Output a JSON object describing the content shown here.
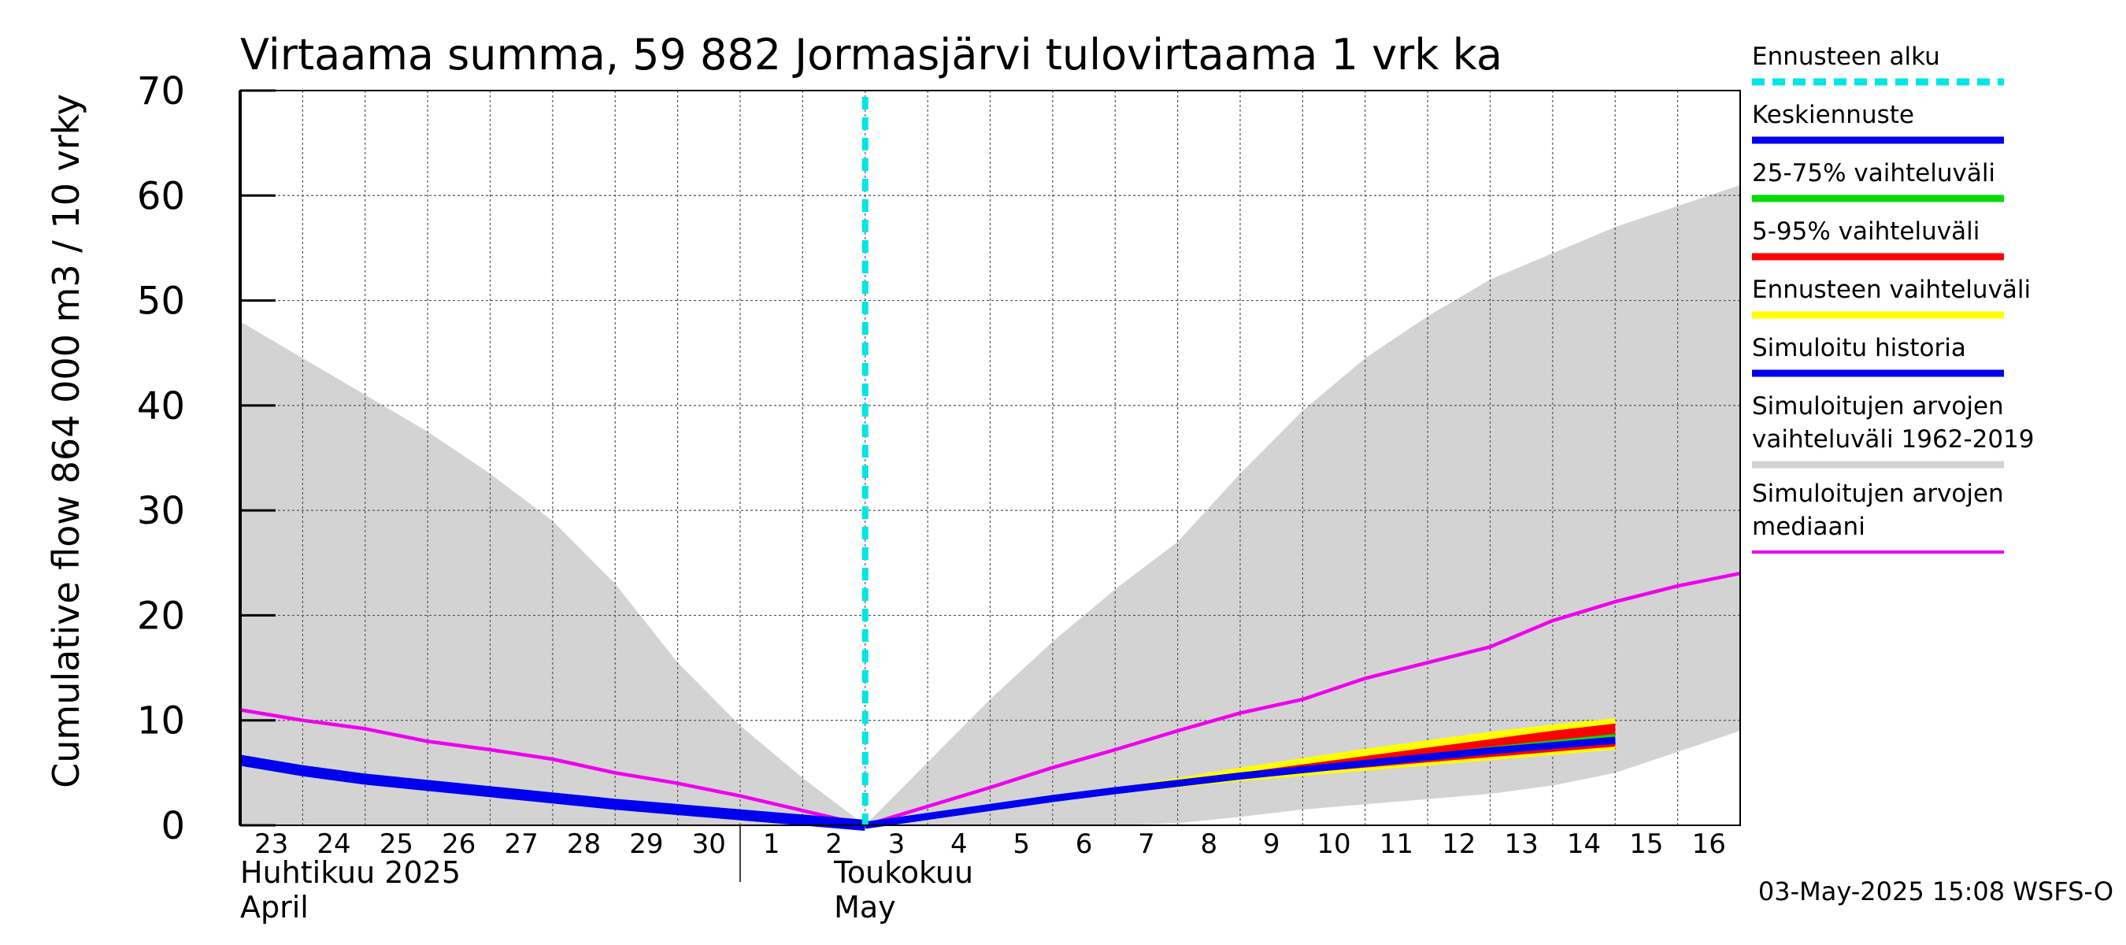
{
  "chart_data": {
    "type": "line",
    "title": "Virtaama summa, 59 882 Jormasjärvi tulovirtaama 1 vrk ka",
    "ylabel": "Cumulative flow    864 000 m3 / 10 vrky",
    "ylim": [
      0,
      70
    ],
    "yticks": [
      "0",
      "10",
      "20",
      "30",
      "40",
      "50",
      "60",
      "70"
    ],
    "grid": true,
    "xtick_labels": [
      "23",
      "24",
      "25",
      "26",
      "27",
      "28",
      "29",
      "30",
      "1",
      "2",
      "3",
      "4",
      "5",
      "6",
      "7",
      "8",
      "9",
      "10",
      "11",
      "12",
      "13",
      "14",
      "15",
      "16"
    ],
    "month_labels": [
      {
        "line1": "Huhtikuu  2025",
        "line2": "April"
      },
      {
        "line1": "Toukokuu",
        "line2": "May"
      }
    ],
    "forecast_start_day": 10,
    "x_days": [
      0,
      1,
      2,
      3,
      4,
      5,
      6,
      7,
      8,
      9,
      10,
      11,
      12,
      13,
      14,
      15,
      16,
      17,
      18,
      19,
      20,
      21,
      22,
      23,
      24
    ],
    "range_1962_2019": {
      "upper": [
        48,
        44.5,
        41,
        37.5,
        33.5,
        29,
        23,
        15.5,
        9.5,
        4.5,
        0,
        6,
        12,
        17.5,
        22.5,
        27,
        33.5,
        39.5,
        44.5,
        48.5,
        52,
        54.5,
        57,
        59,
        61
      ],
      "lower": [
        0,
        0,
        0,
        0,
        0,
        0,
        0,
        0,
        0,
        0,
        0,
        0,
        0,
        0,
        0,
        0.2,
        0.8,
        1.5,
        2,
        2.5,
        3,
        3.8,
        5,
        7,
        9
      ]
    },
    "simulated_median": [
      11,
      10,
      9.2,
      8,
      7.2,
      6.3,
      5,
      4,
      2.8,
      1.4,
      0,
      1.8,
      3.6,
      5.5,
      7.2,
      9,
      10.7,
      12,
      14,
      15.5,
      17,
      19.5,
      21.3,
      22.8,
      24
    ],
    "simulated_history": [
      6.2,
      5.2,
      4.4,
      3.8,
      3.2,
      2.6,
      2,
      1.5,
      1,
      0.5,
      0
    ],
    "forecast_range": {
      "upper": [
        0,
        0.9,
        1.8,
        2.7,
        3.6,
        4.5,
        5.5,
        6.4,
        7.3,
        8.1,
        8.9,
        9.6,
        10.2
      ],
      "lower": [
        0,
        0.8,
        1.6,
        2.3,
        3.0,
        3.6,
        4.2,
        4.7,
        5.2,
        5.7,
        6.2,
        6.7,
        7.2
      ]
    },
    "range_5_95": {
      "upper": [
        0,
        0.9,
        1.8,
        2.6,
        3.4,
        4.2,
        5.0,
        5.8,
        6.6,
        7.4,
        8.2,
        9.0,
        9.7
      ],
      "lower": [
        0,
        0.8,
        1.6,
        2.4,
        3.1,
        3.8,
        4.4,
        5.0,
        5.5,
        6.0,
        6.5,
        7.0,
        7.5
      ]
    },
    "range_25_75": {
      "upper": [
        0,
        0.9,
        1.8,
        2.6,
        3.3,
        4.0,
        4.7,
        5.4,
        6.1,
        6.8,
        7.5,
        8.1,
        8.7
      ],
      "lower": [
        0,
        0.8,
        1.7,
        2.5,
        3.2,
        3.8,
        4.5,
        5.1,
        5.7,
        6.3,
        6.9,
        7.4,
        7.9
      ]
    },
    "mean_forecast": [
      0,
      0.85,
      1.7,
      2.55,
      3.3,
      4.0,
      4.7,
      5.3,
      5.9,
      6.5,
      7.1,
      7.6,
      8.1
    ],
    "series": [
      {
        "name": "Ennusteen alku",
        "color": "#00e5e5"
      },
      {
        "name": "Keskiennuste",
        "color": "#0000ee"
      },
      {
        "name": "25-75% vaihteluväli",
        "color": "#00dd00"
      },
      {
        "name": "5-95% vaihteluväli",
        "color": "#ff0000"
      },
      {
        "name": "Ennusteen vaihteluväli",
        "color": "#ffff00"
      },
      {
        "name": "Simuloitu historia",
        "color": "#0000ee"
      },
      {
        "name": "Simuloitujen arvojen vaihteluväli 1962-2019",
        "color": "#d3d3d3"
      },
      {
        "name": "Simuloitujen arvojen mediaani",
        "color": "#ee00ee"
      }
    ]
  },
  "legend": {
    "items": [
      {
        "lines": [
          "Ennusteen alku"
        ],
        "color": "#00e5e5",
        "style": "dashed"
      },
      {
        "lines": [
          "Keskiennuste"
        ],
        "color": "#0000ee",
        "style": "solid"
      },
      {
        "lines": [
          "25-75% vaihteluväli"
        ],
        "color": "#00dd00",
        "style": "solid"
      },
      {
        "lines": [
          "5-95% vaihteluväli"
        ],
        "color": "#ff0000",
        "style": "solid"
      },
      {
        "lines": [
          "Ennusteen vaihteluväli"
        ],
        "color": "#ffff00",
        "style": "solid"
      },
      {
        "lines": [
          "Simuloitu historia"
        ],
        "color": "#0000ee",
        "style": "solid"
      },
      {
        "lines": [
          "Simuloitujen arvojen",
          "vaihteluväli 1962-2019"
        ],
        "color": "#d3d3d3",
        "style": "solid"
      },
      {
        "lines": [
          "Simuloitujen arvojen",
          "mediaani"
        ],
        "color": "#ee00ee",
        "style": "thin"
      }
    ]
  },
  "footer": {
    "timestamp": "03-May-2025 15:08 WSFS-O"
  }
}
